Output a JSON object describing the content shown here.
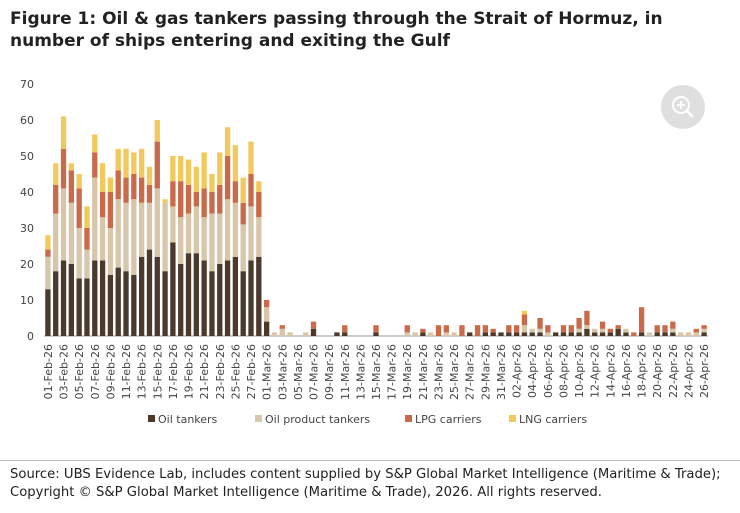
{
  "chart_data": {
    "type": "stacked-bar",
    "title": "Figure 1: Oil & gas tankers passing through the Strait of Hormuz, in number of ships entering and exiting the Gulf",
    "source": "Source: UBS Evidence Lab, includes content supplied by S&P Global Market Intelligence (Maritime & Trade); Copyright © S&P Global Market Intelligence (Maritime & Trade), 2026. All rights reserved.",
    "categories": [
      "01-Feb-26",
      null,
      "03-Feb-26",
      null,
      "05-Feb-26",
      null,
      "07-Feb-26",
      null,
      "09-Feb-26",
      null,
      "11-Feb-26",
      null,
      "13-Feb-26",
      null,
      "15-Feb-26",
      null,
      "17-Feb-26",
      null,
      "19-Feb-26",
      null,
      "21-Feb-26",
      null,
      "23-Feb-26",
      null,
      "25-Feb-26",
      null,
      "27-Feb-26",
      null,
      "01-Mar-26",
      null,
      "03-Mar-26",
      null,
      "05-Mar-26",
      null,
      "07-Mar-26",
      null,
      "09-Mar-26",
      null,
      "11-Mar-26",
      null,
      "13-Mar-26",
      null,
      "15-Mar-26",
      null,
      "17-Mar-26",
      null,
      "19-Mar-26",
      null,
      "21-Mar-26",
      null,
      "23-Mar-26",
      null,
      "25-Mar-26",
      null,
      "27-Mar-26",
      null,
      "29-Mar-26",
      null,
      "31-Mar-26",
      null,
      "02-Apr-26",
      null,
      "04-Apr-26",
      null,
      "06-Apr-26",
      null,
      "08-Apr-26",
      null,
      "10-Apr-26",
      null,
      "12-Apr-26",
      null,
      "14-Apr-26",
      null,
      "16-Apr-26",
      null,
      "18-Apr-26",
      null,
      "20-Apr-26",
      null,
      "22-Apr-26",
      null,
      "24-Apr-26",
      null,
      "26-Apr-26"
    ],
    "series": [
      {
        "name": "Oil tankers",
        "color": "#4b3a2c",
        "values": [
          13,
          18,
          21,
          20,
          16,
          16,
          21,
          21,
          17,
          19,
          18,
          17,
          22,
          24,
          22,
          18,
          26,
          20,
          23,
          23,
          21,
          18,
          20,
          21,
          22,
          18,
          21,
          22,
          4,
          0,
          0,
          0,
          0,
          0,
          2,
          0,
          0,
          1,
          1,
          0,
          0,
          0,
          1,
          0,
          0,
          0,
          0,
          0,
          1,
          0,
          0,
          0,
          0,
          0,
          1,
          0,
          1,
          1,
          1,
          1,
          1,
          1,
          1,
          1,
          0,
          1,
          1,
          1,
          1,
          2,
          1,
          1,
          1,
          2,
          1,
          0,
          1,
          0,
          1,
          1,
          1,
          0,
          0,
          0,
          1
        ]
      },
      {
        "name": "Oil product tankers",
        "color": "#d7c6a9",
        "values": [
          9,
          16,
          20,
          17,
          14,
          8,
          23,
          12,
          13,
          19,
          19,
          21,
          15,
          13,
          19,
          19,
          10,
          13,
          11,
          13,
          12,
          16,
          14,
          17,
          15,
          13,
          15,
          11,
          4,
          1,
          2,
          1,
          0,
          1,
          0,
          0,
          0,
          0,
          0,
          0,
          0,
          0,
          0,
          0,
          0,
          0,
          1,
          1,
          0,
          1,
          0,
          1,
          1,
          0,
          0,
          0,
          0,
          0,
          0,
          0,
          0,
          2,
          1,
          1,
          1,
          0,
          0,
          0,
          1,
          1,
          1,
          1,
          0,
          0,
          1,
          0,
          0,
          1,
          0,
          0,
          1,
          1,
          1,
          1,
          1
        ]
      },
      {
        "name": "LPG carriers",
        "color": "#c96a4b",
        "values": [
          2,
          8,
          11,
          9,
          11,
          6,
          7,
          7,
          10,
          8,
          7,
          7,
          7,
          5,
          13,
          0,
          7,
          10,
          8,
          4,
          8,
          6,
          8,
          12,
          6,
          6,
          9,
          7,
          2,
          0,
          1,
          0,
          0,
          0,
          2,
          0,
          0,
          0,
          2,
          0,
          0,
          0,
          2,
          0,
          0,
          0,
          2,
          0,
          1,
          0,
          3,
          2,
          0,
          3,
          0,
          3,
          2,
          1,
          0,
          2,
          2,
          3,
          0,
          3,
          2,
          0,
          2,
          2,
          3,
          4,
          0,
          2,
          1,
          1,
          0,
          1,
          7,
          0,
          2,
          2,
          2,
          0,
          0,
          1,
          1
        ]
      },
      {
        "name": "LNG carriers",
        "color": "#f1c95c",
        "values": [
          4,
          6,
          9,
          2,
          4,
          6,
          5,
          8,
          4,
          6,
          8,
          6,
          8,
          5,
          6,
          1,
          7,
          7,
          7,
          7,
          10,
          5,
          9,
          8,
          10,
          7,
          9,
          3,
          0,
          0,
          0,
          0,
          0,
          0,
          0,
          0,
          0,
          0,
          0,
          0,
          0,
          0,
          0,
          0,
          0,
          0,
          0,
          0,
          0,
          0,
          0,
          0,
          0,
          0,
          0,
          0,
          0,
          0,
          0,
          0,
          0,
          1,
          0,
          0,
          0,
          0,
          0,
          0,
          0,
          0,
          0,
          0,
          0,
          0,
          0,
          0,
          0,
          0,
          0,
          0,
          0,
          0,
          0,
          0,
          0
        ]
      }
    ],
    "ylim": [
      0,
      70
    ],
    "yticks": [
      0,
      10,
      20,
      30,
      40,
      50,
      60,
      70
    ]
  }
}
